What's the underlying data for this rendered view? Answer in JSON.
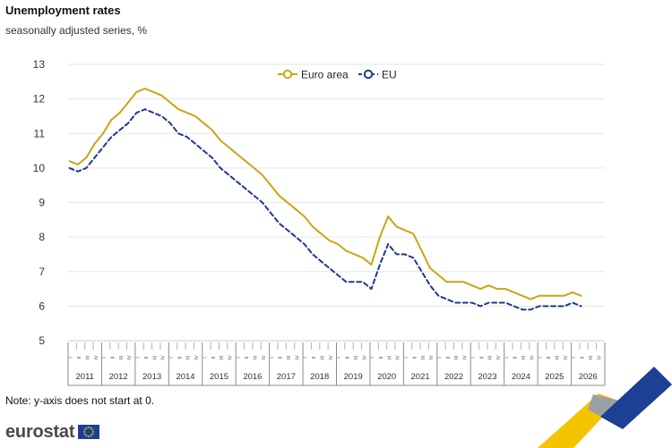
{
  "header": {
    "title": "Unemployment rates",
    "subtitle": "seasonally adjusted series, %"
  },
  "footer": {
    "note": "Note: y-axis does not start at 0.",
    "logo_text": "eurostat"
  },
  "chart_data": {
    "type": "line",
    "title": "Unemployment rates",
    "subtitle": "seasonally adjusted series, %",
    "xlabel": "",
    "ylabel": "",
    "ylim": [
      5,
      13
    ],
    "yticks": [
      5,
      6,
      7,
      8,
      9,
      10,
      11,
      12,
      13
    ],
    "grid": true,
    "legend_position": "top-center",
    "x_granularity": "quarter",
    "x_range": [
      "2011 I",
      "2026 IV"
    ],
    "quarter_labels": [
      "I",
      "II",
      "III",
      "IV"
    ],
    "years": [
      "2011",
      "2012",
      "2013",
      "2014",
      "2015",
      "2016",
      "2017",
      "2018",
      "2019",
      "2020",
      "2021",
      "2022",
      "2023",
      "2024",
      "2025",
      "2026"
    ],
    "series": [
      {
        "name": "Euro area",
        "color": "#c8a614",
        "style": "solid",
        "points": [
          [
            "2011-01",
            10.2
          ],
          [
            "2011-04",
            10.1
          ],
          [
            "2011-07",
            10.3
          ],
          [
            "2011-10",
            10.7
          ],
          [
            "2012-01",
            11.0
          ],
          [
            "2012-04",
            11.4
          ],
          [
            "2012-07",
            11.6
          ],
          [
            "2012-10",
            11.9
          ],
          [
            "2013-01",
            12.2
          ],
          [
            "2013-04",
            12.3
          ],
          [
            "2013-07",
            12.2
          ],
          [
            "2013-10",
            12.1
          ],
          [
            "2014-01",
            11.9
          ],
          [
            "2014-04",
            11.7
          ],
          [
            "2014-07",
            11.6
          ],
          [
            "2014-10",
            11.5
          ],
          [
            "2015-01",
            11.3
          ],
          [
            "2015-04",
            11.1
          ],
          [
            "2015-07",
            10.8
          ],
          [
            "2015-10",
            10.6
          ],
          [
            "2016-01",
            10.4
          ],
          [
            "2016-04",
            10.2
          ],
          [
            "2016-07",
            10.0
          ],
          [
            "2016-10",
            9.8
          ],
          [
            "2017-01",
            9.5
          ],
          [
            "2017-04",
            9.2
          ],
          [
            "2017-07",
            9.0
          ],
          [
            "2017-10",
            8.8
          ],
          [
            "2018-01",
            8.6
          ],
          [
            "2018-04",
            8.3
          ],
          [
            "2018-07",
            8.1
          ],
          [
            "2018-10",
            7.9
          ],
          [
            "2019-01",
            7.8
          ],
          [
            "2019-04",
            7.6
          ],
          [
            "2019-07",
            7.5
          ],
          [
            "2019-10",
            7.4
          ],
          [
            "2020-01",
            7.2
          ],
          [
            "2020-04",
            8.0
          ],
          [
            "2020-07",
            8.6
          ],
          [
            "2020-10",
            8.3
          ],
          [
            "2021-01",
            8.2
          ],
          [
            "2021-04",
            8.1
          ],
          [
            "2021-07",
            7.6
          ],
          [
            "2021-10",
            7.1
          ],
          [
            "2022-01",
            6.9
          ],
          [
            "2022-04",
            6.7
          ],
          [
            "2022-07",
            6.7
          ],
          [
            "2022-10",
            6.7
          ],
          [
            "2023-01",
            6.6
          ],
          [
            "2023-04",
            6.5
          ],
          [
            "2023-07",
            6.6
          ],
          [
            "2023-10",
            6.5
          ],
          [
            "2024-01",
            6.5
          ],
          [
            "2024-04",
            6.4
          ],
          [
            "2024-07",
            6.3
          ],
          [
            "2024-10",
            6.2
          ],
          [
            "2025-01",
            6.3
          ],
          [
            "2025-04",
            6.3
          ],
          [
            "2025-07",
            6.3
          ],
          [
            "2025-10",
            6.3
          ],
          [
            "2026-01",
            6.4
          ],
          [
            "2026-04",
            6.3
          ]
        ]
      },
      {
        "name": "EU",
        "color": "#1f3a8a",
        "style": "dashed",
        "points": [
          [
            "2011-01",
            10.0
          ],
          [
            "2011-04",
            9.9
          ],
          [
            "2011-07",
            10.0
          ],
          [
            "2011-10",
            10.3
          ],
          [
            "2012-01",
            10.6
          ],
          [
            "2012-04",
            10.9
          ],
          [
            "2012-07",
            11.1
          ],
          [
            "2012-10",
            11.3
          ],
          [
            "2013-01",
            11.6
          ],
          [
            "2013-04",
            11.7
          ],
          [
            "2013-07",
            11.6
          ],
          [
            "2013-10",
            11.5
          ],
          [
            "2014-01",
            11.3
          ],
          [
            "2014-04",
            11.0
          ],
          [
            "2014-07",
            10.9
          ],
          [
            "2014-10",
            10.7
          ],
          [
            "2015-01",
            10.5
          ],
          [
            "2015-04",
            10.3
          ],
          [
            "2015-07",
            10.0
          ],
          [
            "2015-10",
            9.8
          ],
          [
            "2016-01",
            9.6
          ],
          [
            "2016-04",
            9.4
          ],
          [
            "2016-07",
            9.2
          ],
          [
            "2016-10",
            9.0
          ],
          [
            "2017-01",
            8.7
          ],
          [
            "2017-04",
            8.4
          ],
          [
            "2017-07",
            8.2
          ],
          [
            "2017-10",
            8.0
          ],
          [
            "2018-01",
            7.8
          ],
          [
            "2018-04",
            7.5
          ],
          [
            "2018-07",
            7.3
          ],
          [
            "2018-10",
            7.1
          ],
          [
            "2019-01",
            6.9
          ],
          [
            "2019-04",
            6.7
          ],
          [
            "2019-07",
            6.7
          ],
          [
            "2019-10",
            6.7
          ],
          [
            "2020-01",
            6.5
          ],
          [
            "2020-04",
            7.2
          ],
          [
            "2020-07",
            7.8
          ],
          [
            "2020-10",
            7.5
          ],
          [
            "2021-01",
            7.5
          ],
          [
            "2021-04",
            7.4
          ],
          [
            "2021-07",
            7.0
          ],
          [
            "2021-10",
            6.6
          ],
          [
            "2022-01",
            6.3
          ],
          [
            "2022-04",
            6.2
          ],
          [
            "2022-07",
            6.1
          ],
          [
            "2022-10",
            6.1
          ],
          [
            "2023-01",
            6.1
          ],
          [
            "2023-04",
            6.0
          ],
          [
            "2023-07",
            6.1
          ],
          [
            "2023-10",
            6.1
          ],
          [
            "2024-01",
            6.1
          ],
          [
            "2024-04",
            6.0
          ],
          [
            "2024-07",
            5.9
          ],
          [
            "2024-10",
            5.9
          ],
          [
            "2025-01",
            6.0
          ],
          [
            "2025-04",
            6.0
          ],
          [
            "2025-07",
            6.0
          ],
          [
            "2025-10",
            6.0
          ],
          [
            "2026-01",
            6.1
          ],
          [
            "2026-04",
            6.0
          ]
        ]
      }
    ]
  }
}
